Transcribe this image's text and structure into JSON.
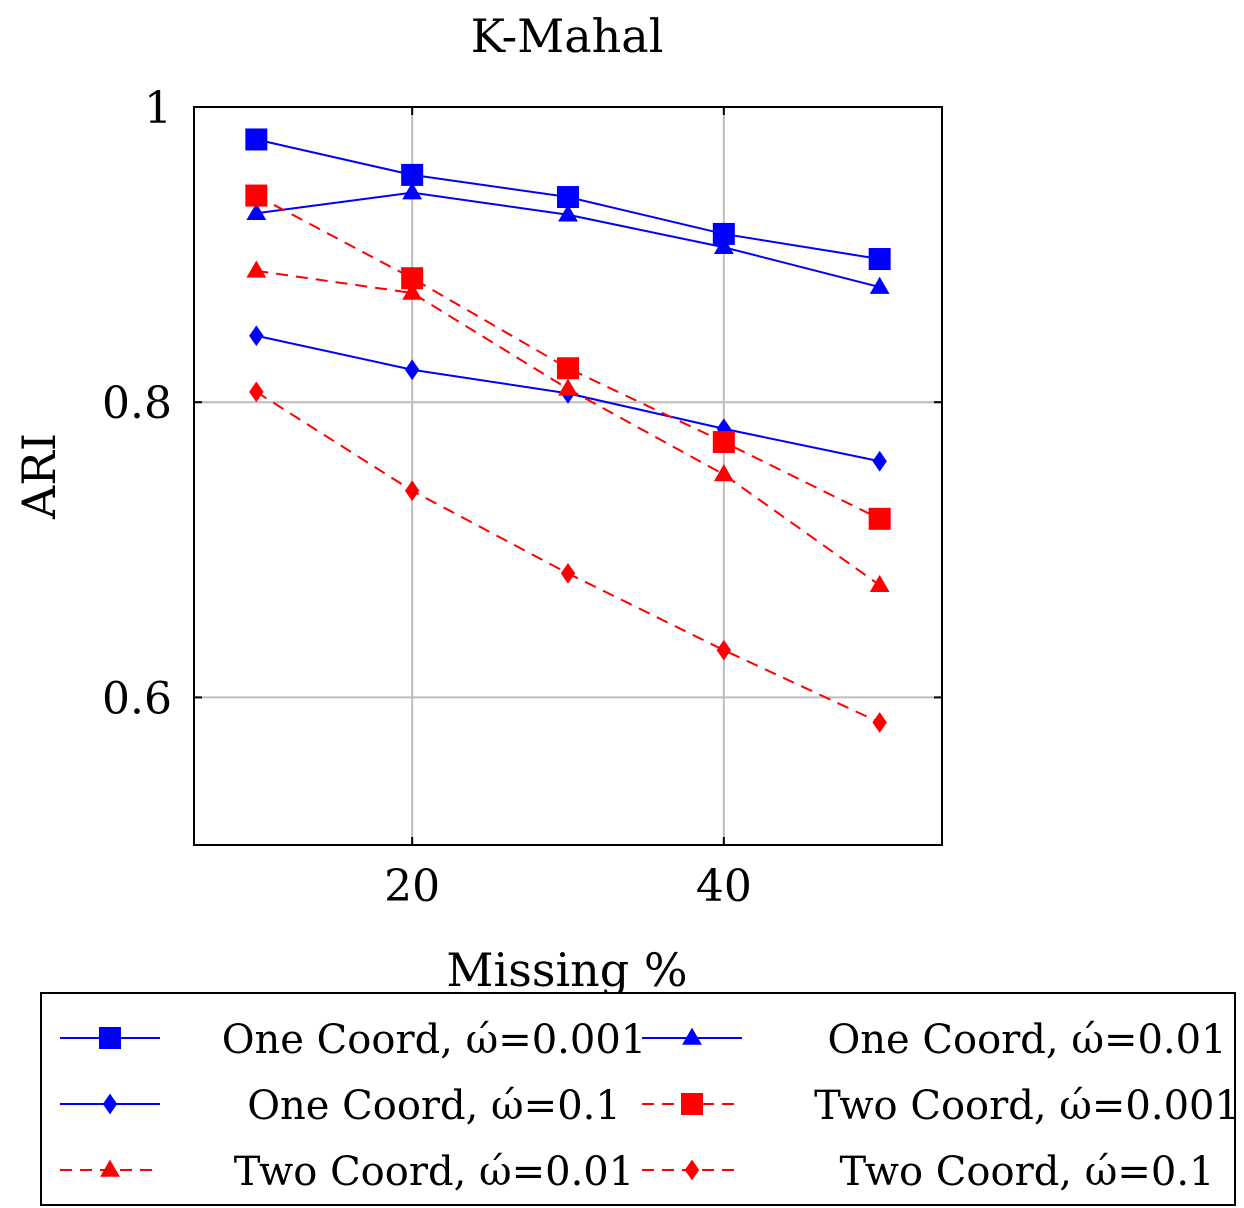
{
  "chart_data": {
    "type": "line",
    "title": "K-Mahal",
    "xlabel": "Missing %",
    "ylabel": "ARI",
    "xlim": [
      6,
      54
    ],
    "ylim": [
      0.5,
      1.0
    ],
    "xticks": [
      20,
      40
    ],
    "xtick_labels": [
      "20",
      "40"
    ],
    "yticks": [
      0.6,
      0.8,
      1.0
    ],
    "ytick_labels": [
      "0.6",
      "0.8",
      "1"
    ],
    "grid": true,
    "legend_position": "bottom",
    "x": [
      10,
      20,
      30,
      40,
      50
    ],
    "series": [
      {
        "name": "One Coord, ώ=0.001",
        "color": "#0000ff",
        "dash": false,
        "marker": "square",
        "values": [
          0.978,
          0.954,
          0.939,
          0.914,
          0.897
        ]
      },
      {
        "name": "One Coord, ώ=0.01",
        "color": "#0000ff",
        "dash": false,
        "marker": "triangle",
        "values": [
          0.928,
          0.942,
          0.927,
          0.905,
          0.878
        ]
      },
      {
        "name": "One Coord, ώ=0.1",
        "color": "#0000ff",
        "dash": false,
        "marker": "diamond",
        "values": [
          0.845,
          0.822,
          0.806,
          0.782,
          0.76
        ]
      },
      {
        "name": "Two Coord, ώ=0.001",
        "color": "#ff0000",
        "dash": true,
        "marker": "square",
        "values": [
          0.94,
          0.884,
          0.823,
          0.773,
          0.721
        ]
      },
      {
        "name": "Two Coord, ώ=0.01",
        "color": "#ff0000",
        "dash": true,
        "marker": "triangle",
        "values": [
          0.889,
          0.874,
          0.809,
          0.751,
          0.676
        ]
      },
      {
        "name": "Two Coord, ώ=0.1",
        "color": "#ff0000",
        "dash": true,
        "marker": "diamond",
        "values": [
          0.807,
          0.74,
          0.684,
          0.632,
          0.583
        ]
      }
    ]
  }
}
